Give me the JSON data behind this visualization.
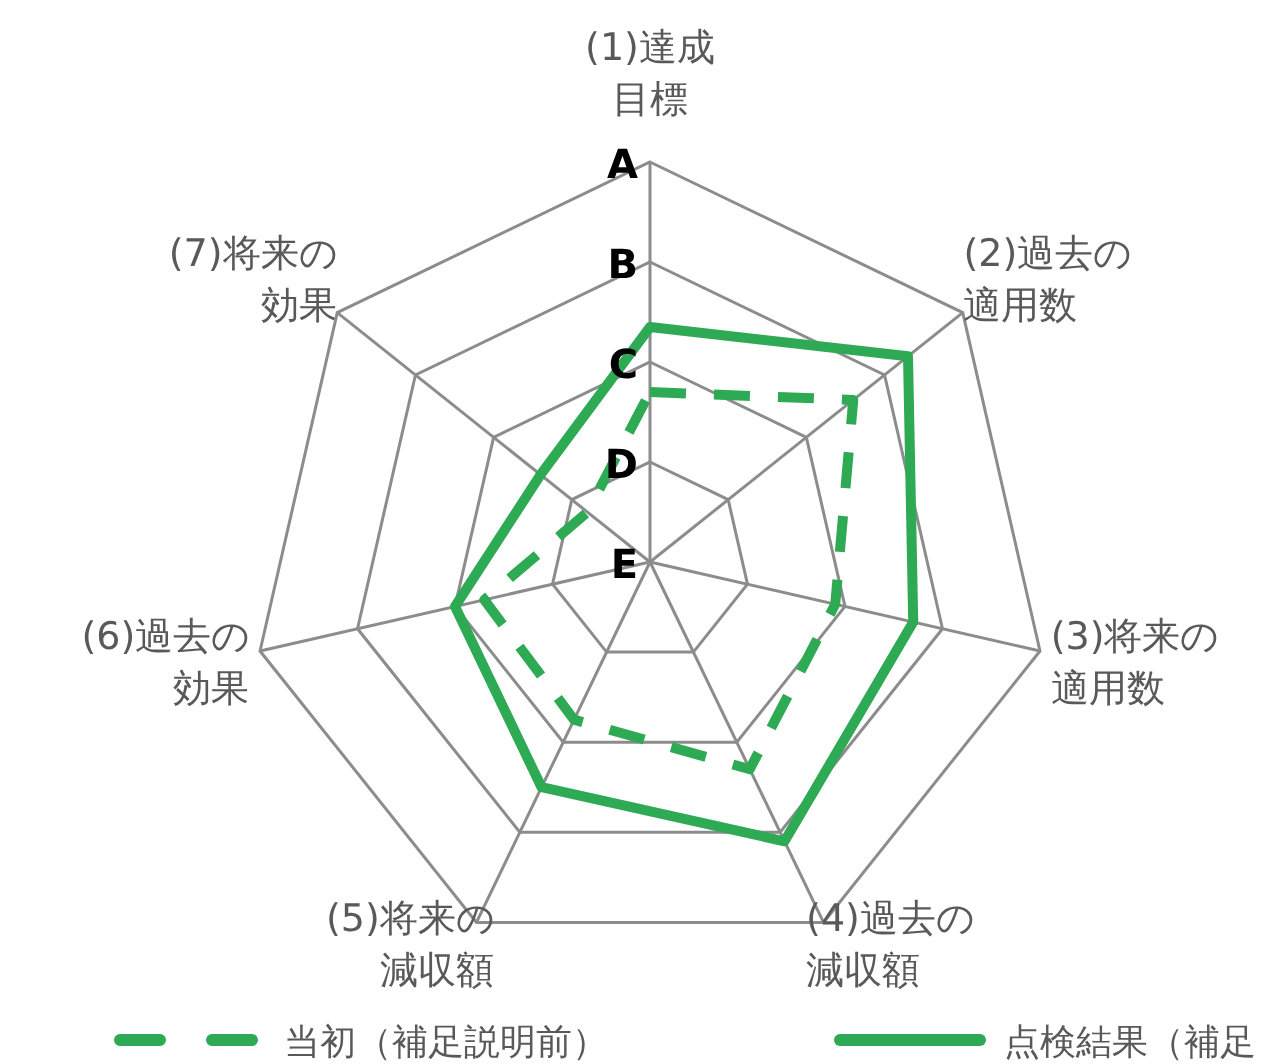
{
  "chart_data": {
    "type": "radar",
    "categories": [
      "(1)達成目標",
      "(2)過去の適用数",
      "(3)将来の適用数",
      "(4)過去の減収額",
      "(5)将来の減収額",
      "(6)過去の効果",
      "(7)将来の効果"
    ],
    "ylim": [
      0,
      4
    ],
    "yticks": [
      {
        "value": 0,
        "label": "E"
      },
      {
        "value": 1,
        "label": "D"
      },
      {
        "value": 2,
        "label": "C"
      },
      {
        "value": 3,
        "label": "B"
      },
      {
        "value": 4,
        "label": "A"
      }
    ],
    "legend": "bottom",
    "series": [
      {
        "name": "当初（補足説明前）",
        "color": "#2eaa55",
        "line_style": "dashed",
        "values": [
          1.7,
          2.6,
          1.9,
          2.3,
          1.75,
          1.7,
          0.8
        ]
      },
      {
        "name": "点検結果（補足",
        "color": "#2eaa55",
        "line_style": "solid",
        "values": [
          2.35,
          3.3,
          2.7,
          3.1,
          2.5,
          2.0,
          1.4
        ]
      }
    ]
  }
}
